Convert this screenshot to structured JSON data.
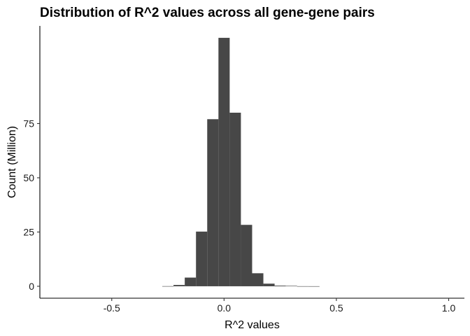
{
  "chart_data": {
    "type": "bar",
    "title": "Distribution of R^2 values across all gene-gene pairs",
    "xlabel": "R^2 values",
    "ylabel": "Count (Million)",
    "xlim": [
      -0.82,
      1.07
    ],
    "ylim": [
      -5.5,
      120
    ],
    "x_ticks": [
      -0.5,
      0.0,
      0.5,
      1.0
    ],
    "x_tick_labels": [
      "-0.5",
      "0.0",
      "0.5",
      "1.0"
    ],
    "y_ticks": [
      0,
      25,
      50,
      75
    ],
    "y_tick_labels": [
      "0",
      "25",
      "50",
      "75"
    ],
    "bin_width": 0.05,
    "bins": [
      {
        "x": -0.25,
        "value": 0.05
      },
      {
        "x": -0.2,
        "value": 0.6
      },
      {
        "x": -0.15,
        "value": 4.0
      },
      {
        "x": -0.1,
        "value": 25.2
      },
      {
        "x": -0.05,
        "value": 77.0
      },
      {
        "x": 0.0,
        "value": 114.5
      },
      {
        "x": 0.05,
        "value": 80.0
      },
      {
        "x": 0.1,
        "value": 28.3
      },
      {
        "x": 0.15,
        "value": 6.0
      },
      {
        "x": 0.2,
        "value": 1.2
      },
      {
        "x": 0.25,
        "value": 0.3
      },
      {
        "x": 0.3,
        "value": 0.2
      },
      {
        "x": 0.35,
        "value": 0.03
      },
      {
        "x": 0.4,
        "value": 0.02
      }
    ],
    "bar_color": "#474747",
    "grid": false
  }
}
